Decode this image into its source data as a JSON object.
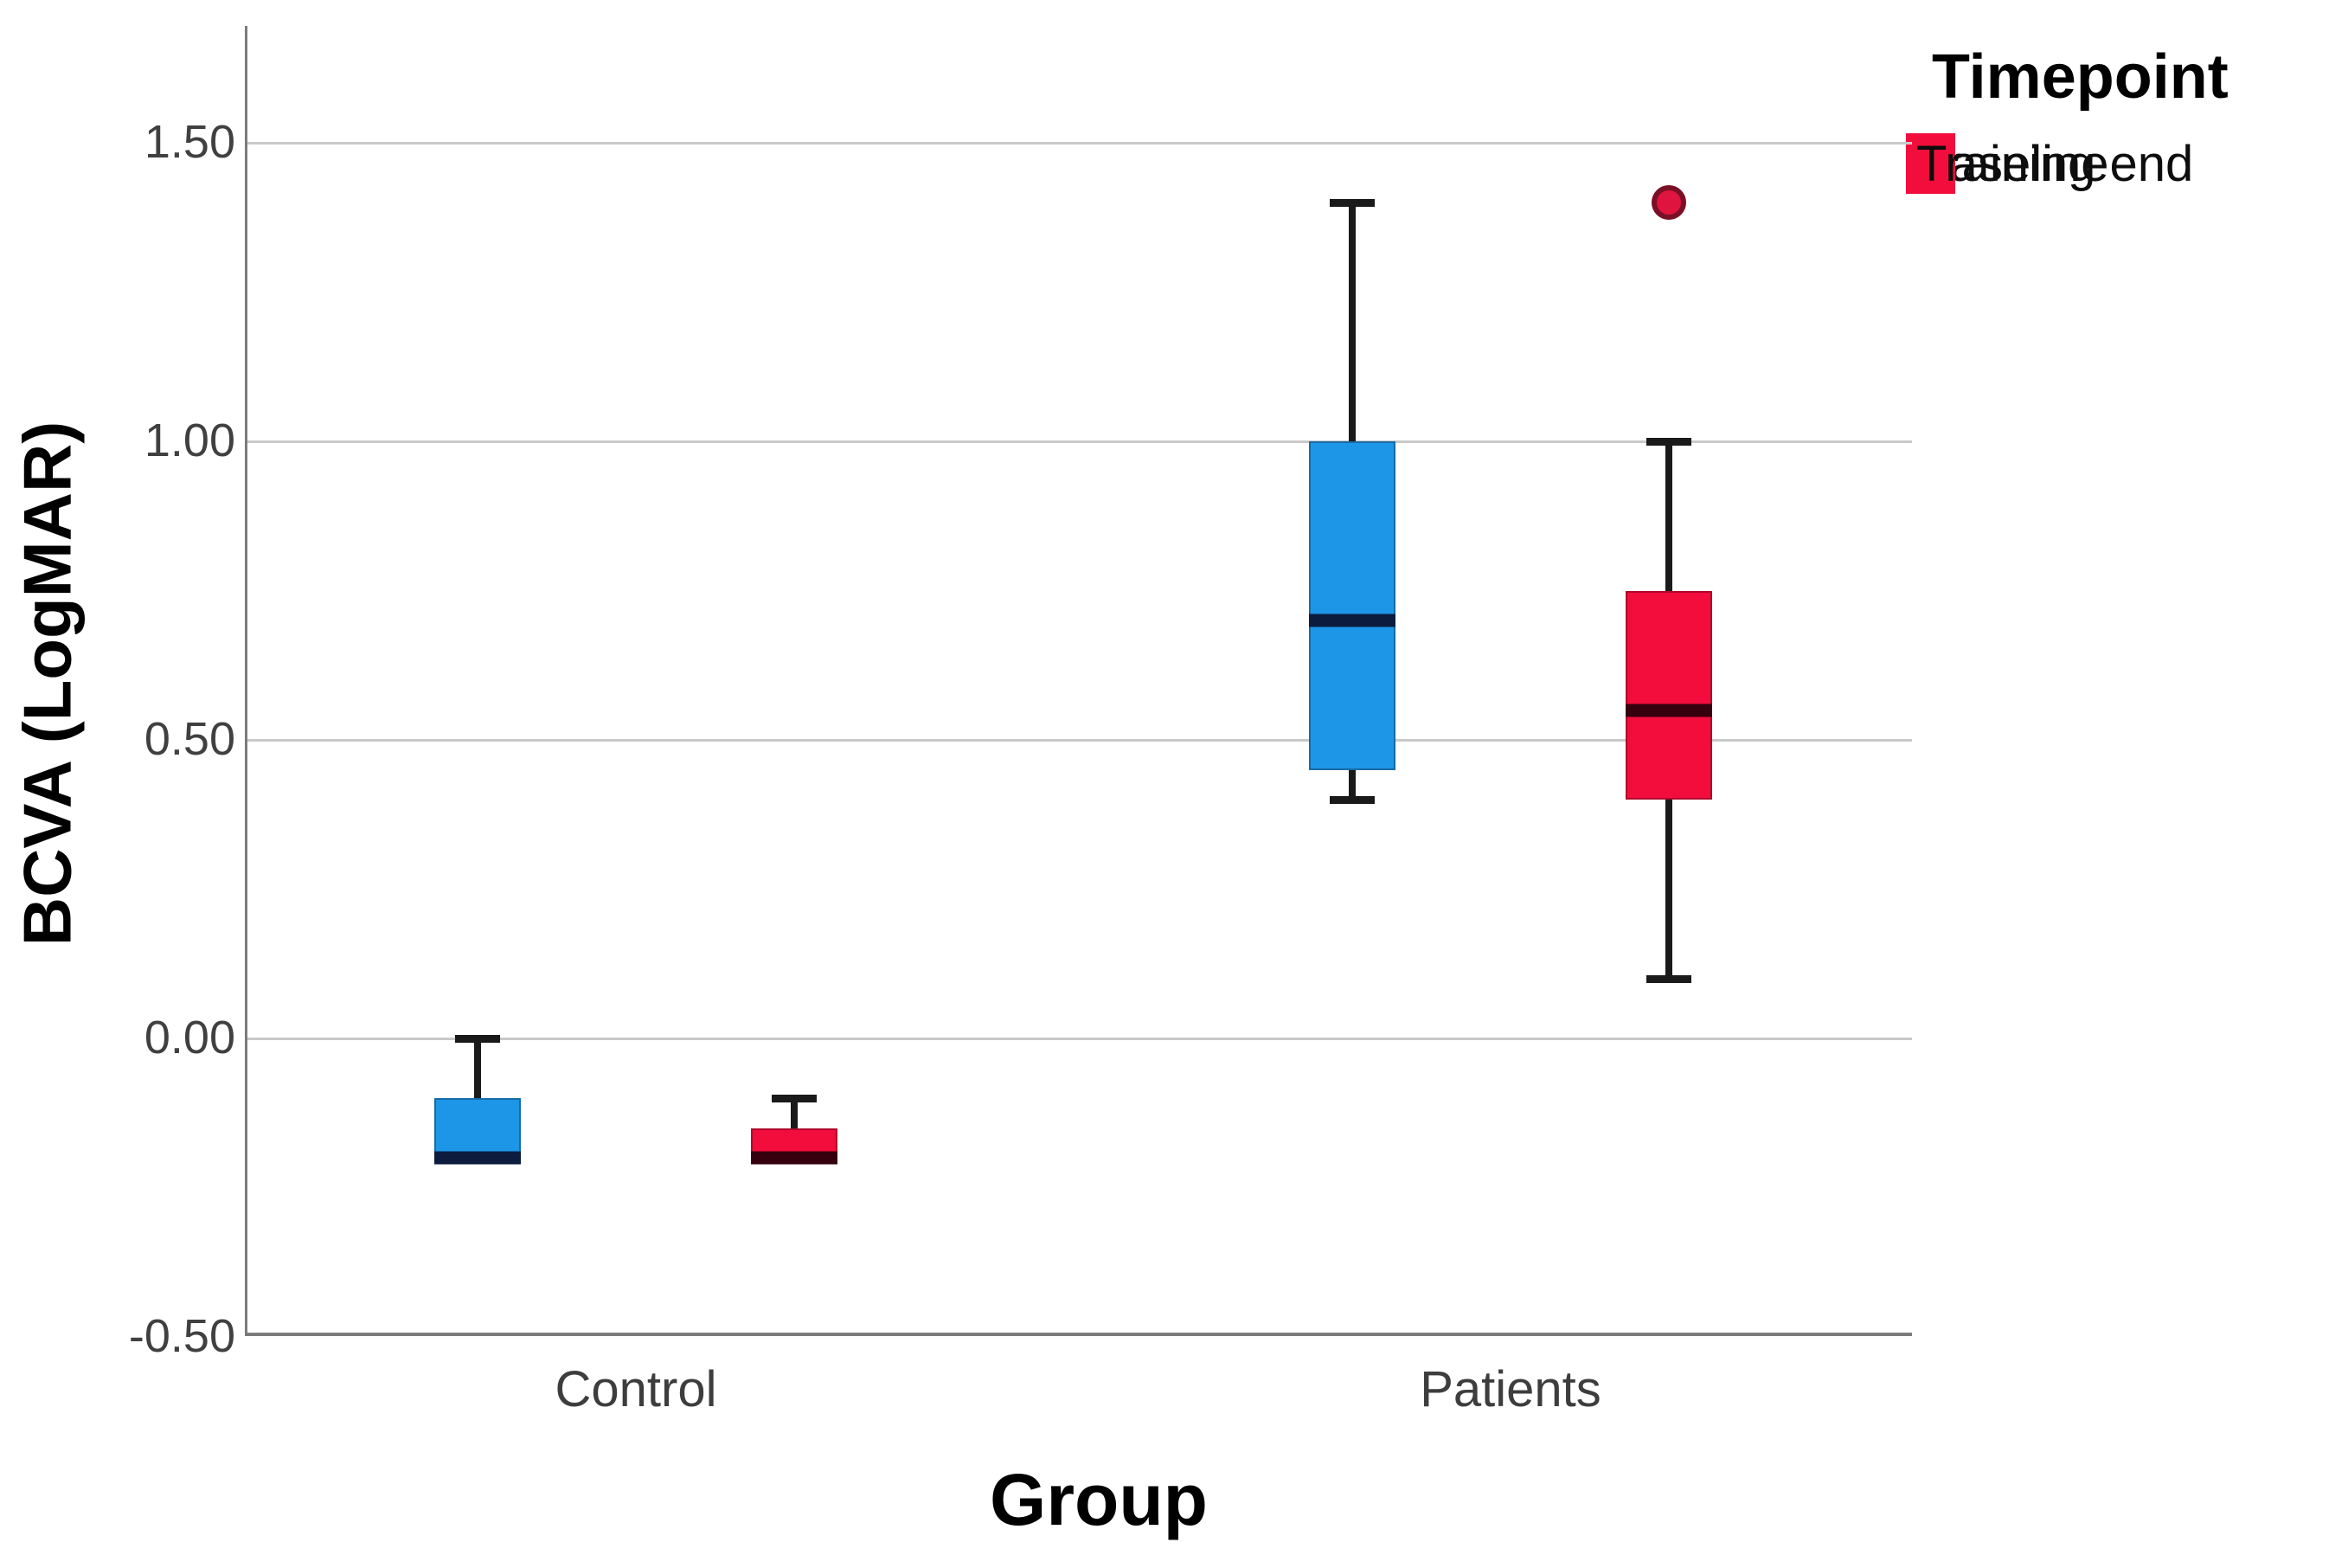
{
  "figure": {
    "y_axis_title": "BCVA (LogMAR)",
    "x_axis_title": "Group"
  },
  "legend": {
    "title": "Timepoint"
  },
  "chart_data": {
    "type": "boxplot",
    "title": "",
    "xlabel": "Group",
    "ylabel": "BCVA (LogMAR)",
    "categories": [
      "Control",
      "Patients"
    ],
    "y_ticks": [
      1.5,
      1.0,
      0.5,
      0.0,
      -0.5
    ],
    "y_tick_labels": [
      "1.50",
      "1.00",
      "0.50",
      "0.00",
      "-0.50"
    ],
    "ylim": [
      -0.5,
      1.7
    ],
    "grid": "horizontal-light-gray",
    "legend_position": "top-right",
    "legend_title": "Timepoint",
    "colors": {
      "baseline_fill": "#1E96E8",
      "training_end_fill": "#F20D3C",
      "baseline_median": "#0B1C3E",
      "training_end_median": "#36000F",
      "gridline": "#c9c9c9",
      "axis": "#7b7b7b",
      "outlier_fill": "#E0153F",
      "outlier_stroke": "#7A1026"
    },
    "series": [
      {
        "name": "Baseline",
        "fill": "#1E96E8",
        "median_color": "#0B1C3E",
        "boxes": [
          {
            "category": "Control",
            "whisker_low": -0.2,
            "q1": -0.2,
            "median": -0.2,
            "q3": -0.1,
            "whisker_high": 0.0,
            "outliers": []
          },
          {
            "category": "Patients",
            "whisker_low": 0.4,
            "q1": 0.45,
            "median": 0.7,
            "q3": 1.0,
            "whisker_high": 1.4,
            "outliers": []
          }
        ]
      },
      {
        "name": "Training end",
        "fill": "#F20D3C",
        "median_color": "#36000F",
        "boxes": [
          {
            "category": "Control",
            "whisker_low": -0.2,
            "q1": -0.2,
            "median": -0.2,
            "q3": -0.15,
            "whisker_high": -0.1,
            "outliers": []
          },
          {
            "category": "Patients",
            "whisker_low": 0.1,
            "q1": 0.4,
            "median": 0.55,
            "q3": 0.75,
            "whisker_high": 1.0,
            "outliers": [
              1.4
            ]
          }
        ]
      }
    ]
  }
}
